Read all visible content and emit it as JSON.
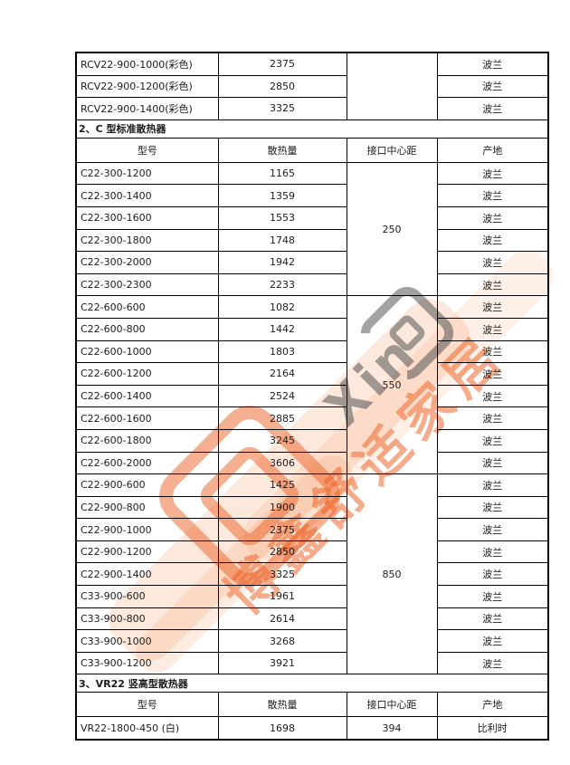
{
  "table": {
    "columns": [
      "型号",
      "散热量",
      "接口中心距",
      "产地"
    ],
    "sections": [
      {
        "kind": "group",
        "distance": "",
        "rows": [
          {
            "model": "RCV22-900-1000(彩色)",
            "output": "2375",
            "origin": "波兰"
          },
          {
            "model": "RCV22-900-1200(彩色)",
            "output": "2850",
            "origin": "波兰"
          },
          {
            "model": "RCV22-900-1400(彩色)",
            "output": "3325",
            "origin": "波兰"
          }
        ]
      },
      {
        "kind": "title",
        "text": "2、C 型标准散热器"
      },
      {
        "kind": "header",
        "cells": [
          "型号",
          "散热量",
          "接口中心距",
          "产地"
        ]
      },
      {
        "kind": "group",
        "distance": "250",
        "rows": [
          {
            "model": "C22-300-1200",
            "output": "1165",
            "origin": "波兰"
          },
          {
            "model": "C22-300-1400",
            "output": "1359",
            "origin": "波兰"
          },
          {
            "model": "C22-300-1600",
            "output": "1553",
            "origin": "波兰"
          },
          {
            "model": "C22-300-1800",
            "output": "1748",
            "origin": "波兰"
          },
          {
            "model": "C22-300-2000",
            "output": "1942",
            "origin": "波兰"
          },
          {
            "model": "C22-300-2300",
            "output": "2233",
            "origin": "波兰"
          }
        ]
      },
      {
        "kind": "group",
        "distance": "550",
        "rows": [
          {
            "model": "C22-600-600",
            "output": "1082",
            "origin": "波兰"
          },
          {
            "model": "C22-600-800",
            "output": "1442",
            "origin": "波兰"
          },
          {
            "model": "C22-600-1000",
            "output": "1803",
            "origin": "波兰"
          },
          {
            "model": "C22-600-1200",
            "output": "2164",
            "origin": "波兰"
          },
          {
            "model": "C22-600-1400",
            "output": "2524",
            "origin": "波兰"
          },
          {
            "model": "C22-600-1600",
            "output": "2885",
            "origin": "波兰"
          },
          {
            "model": "C22-600-1800",
            "output": "3245",
            "origin": "波兰"
          },
          {
            "model": "C22-600-2000",
            "output": "3606",
            "origin": "波兰"
          }
        ]
      },
      {
        "kind": "group",
        "distance": "850",
        "rows": [
          {
            "model": "C22-900-600",
            "output": "1425",
            "origin": "波兰"
          },
          {
            "model": "C22-900-800",
            "output": "1900",
            "origin": "波兰"
          },
          {
            "model": "C22-900-1000",
            "output": "2375",
            "origin": "波兰"
          },
          {
            "model": "C22-900-1200",
            "output": "2850",
            "origin": "波兰"
          },
          {
            "model": "C22-900-1400",
            "output": "3325",
            "origin": "波兰"
          },
          {
            "model": "C33-900-600",
            "output": "1961",
            "origin": "波兰"
          },
          {
            "model": "C33-900-800",
            "output": "2614",
            "origin": "波兰"
          },
          {
            "model": "C33-900-1000",
            "output": "3268",
            "origin": "波兰"
          },
          {
            "model": "C33-900-1200",
            "output": "3921",
            "origin": "波兰"
          }
        ]
      },
      {
        "kind": "title",
        "text": "3、VR22 竖高型散热器"
      },
      {
        "kind": "header",
        "cells": [
          "型号",
          "散热量",
          "接口中心距",
          "产地"
        ]
      },
      {
        "kind": "group",
        "distance": "394",
        "rows": [
          {
            "model": "VR22-1800-450 (白)",
            "output": "1698",
            "origin": "比利时"
          }
        ]
      }
    ]
  },
  "watermark": {
    "latin_text": "Xin",
    "cn_text": "博鑫舒适家居",
    "orange_color": "#EC5F23",
    "gray_color": "#464646"
  }
}
